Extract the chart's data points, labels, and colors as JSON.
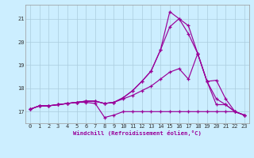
{
  "xlabel": "Windchill (Refroidissement éolien,°C)",
  "bg_color": "#cceeff",
  "line_color": "#990099",
  "grid_color": "#aaccdd",
  "xlim": [
    -0.5,
    23.5
  ],
  "ylim": [
    16.5,
    21.6
  ],
  "yticks": [
    17,
    18,
    19,
    20,
    21
  ],
  "xticks": [
    0,
    1,
    2,
    3,
    4,
    5,
    6,
    7,
    8,
    9,
    10,
    11,
    12,
    13,
    14,
    15,
    16,
    17,
    18,
    19,
    20,
    21,
    22,
    23
  ],
  "series": [
    [
      17.1,
      17.25,
      17.25,
      17.3,
      17.35,
      17.4,
      17.4,
      17.35,
      16.75,
      16.85,
      17.0,
      17.0,
      17.0,
      17.0,
      17.0,
      17.0,
      17.0,
      17.0,
      17.0,
      17.0,
      17.0,
      17.0,
      17.0,
      16.85
    ],
    [
      17.1,
      17.25,
      17.25,
      17.3,
      17.35,
      17.4,
      17.45,
      17.45,
      17.35,
      17.4,
      17.55,
      17.7,
      17.9,
      18.1,
      18.4,
      18.7,
      18.85,
      18.4,
      19.5,
      18.3,
      18.35,
      17.55,
      17.0,
      16.85
    ],
    [
      17.1,
      17.25,
      17.25,
      17.3,
      17.35,
      17.4,
      17.45,
      17.45,
      17.35,
      17.4,
      17.6,
      17.9,
      18.3,
      18.75,
      19.65,
      20.65,
      21.0,
      20.35,
      19.5,
      18.3,
      17.55,
      17.3,
      17.0,
      16.85
    ],
    [
      17.1,
      17.25,
      17.25,
      17.3,
      17.35,
      17.4,
      17.45,
      17.45,
      17.35,
      17.4,
      17.6,
      17.9,
      18.3,
      18.75,
      19.65,
      21.3,
      21.0,
      20.7,
      19.5,
      18.3,
      17.3,
      17.3,
      17.0,
      16.85
    ]
  ]
}
